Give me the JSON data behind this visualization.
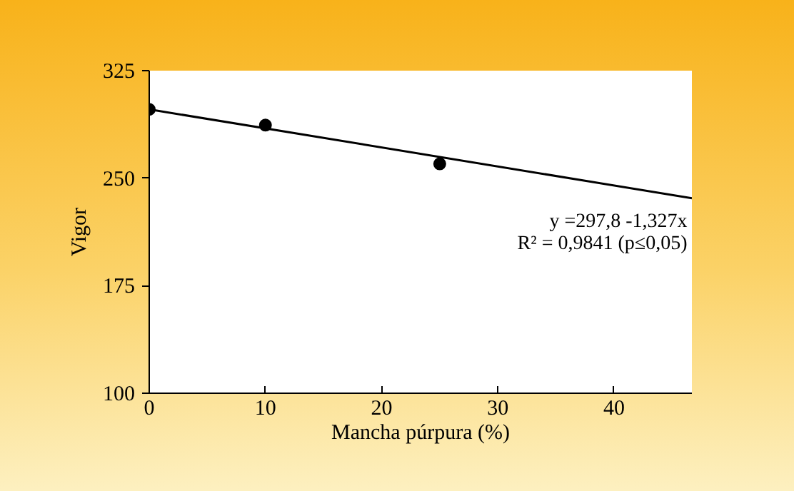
{
  "chart_data": {
    "type": "scatter",
    "xlabel": "Mancha púrpura (%)",
    "ylabel": "Vigor",
    "xlim": [
      0,
      46.7
    ],
    "xticks": [
      0,
      10,
      20,
      30,
      40
    ],
    "ylim": [
      100,
      325
    ],
    "yticks": [
      100,
      175,
      250,
      325
    ],
    "grid": false,
    "marker": "circle",
    "series": [
      {
        "color": "#000000",
        "x": [
          0,
          10,
          25
        ],
        "values": [
          298,
          287,
          260
        ]
      },
      {
        "type": "line",
        "color": "#000000",
        "x": [
          0,
          46.7
        ],
        "values": [
          298,
          236
        ],
        "marker": "none",
        "line_style": "solid"
      }
    ],
    "annotations": [
      "y =297,8 -1,327x",
      "R² = 0,9841 (p≤0,05)"
    ]
  }
}
